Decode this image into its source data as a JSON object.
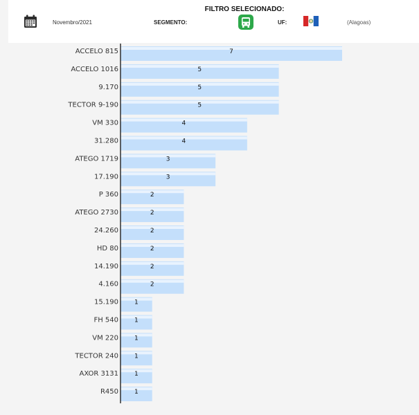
{
  "filter": {
    "title": "FILTRO SELECIONADO:",
    "period": "Novembro/2021",
    "segment_label": "SEGMENTO:",
    "segment_icon": "bus-icon",
    "uf_label": "UF:",
    "state_name": "(Alagoas)",
    "calendar_icon": "calendar-icon",
    "flag_icon": "alagoas-flag-icon"
  },
  "colors": {
    "bar_fill": "#c4dffb",
    "bar_highlight": "#e9f3fe",
    "segment_green": "#2da84a"
  },
  "chart_data": {
    "type": "bar",
    "orientation": "horizontal",
    "categories": [
      "ACCELO 815",
      "ACCELO 1016",
      "9.170",
      "TECTOR 9-190",
      "VM 330",
      "31.280",
      "ATEGO 1719",
      "17.190",
      "P 360",
      "ATEGO 2730",
      "24.260",
      "HD 80",
      "14.190",
      "4.160",
      "15.190",
      "FH 540",
      "VM 220",
      "TECTOR 240",
      "AXOR 3131",
      "R450"
    ],
    "values": [
      7,
      5,
      5,
      5,
      4,
      4,
      3,
      3,
      2,
      2,
      2,
      2,
      2,
      2,
      1,
      1,
      1,
      1,
      1,
      1
    ],
    "title": "",
    "xlabel": "",
    "ylabel": "",
    "xlim": [
      0,
      7
    ],
    "grid": false,
    "legend": "none"
  }
}
